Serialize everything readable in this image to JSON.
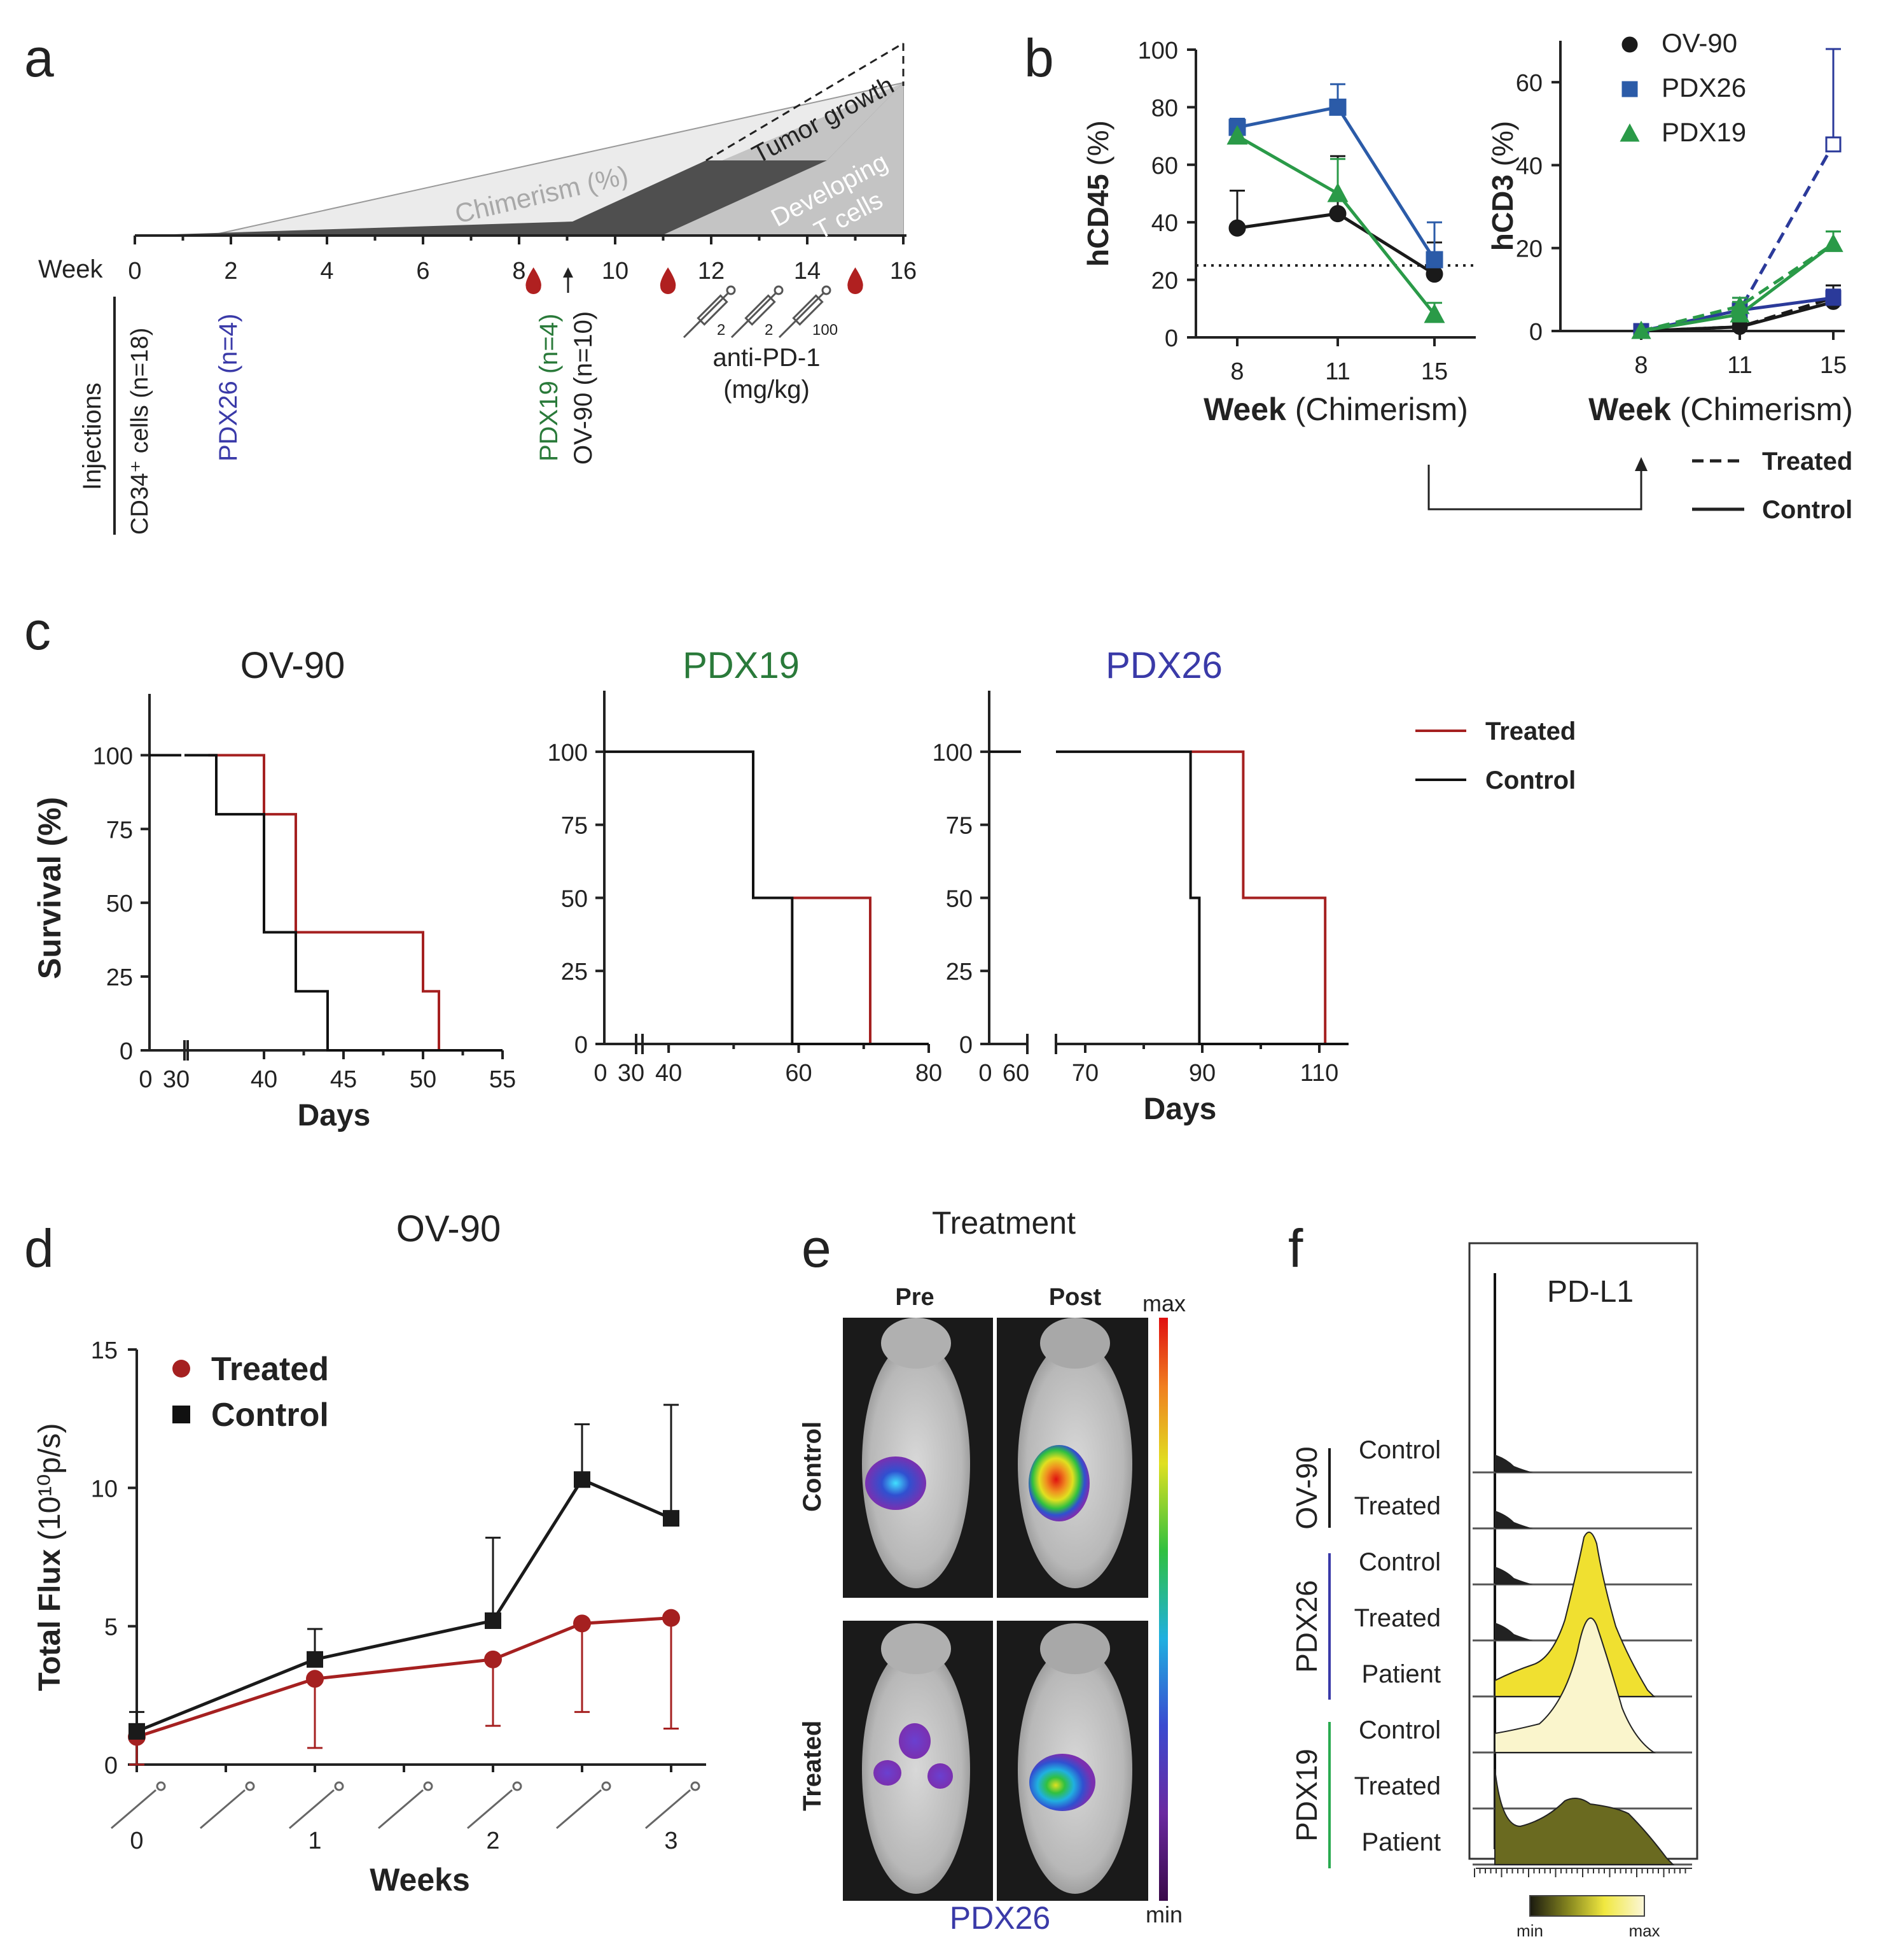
{
  "panel_letters": {
    "a": "a",
    "b": "b",
    "c": "c",
    "d": "d",
    "e": "e",
    "f": "f"
  },
  "colors": {
    "ov90": "#1a1a1a",
    "pdx26": "#2b5ba8",
    "pdx19": "#2a9a48",
    "pdx26_title": "#3a3aa8",
    "pdx19_title": "#2a7a3a",
    "treated": "#a52020",
    "control": "#111111"
  },
  "panel_a": {
    "week_label": "Week",
    "weeks": [
      0,
      2,
      4,
      6,
      8,
      10,
      12,
      14,
      16
    ],
    "regions": {
      "chimerism": "Chimerism (%)",
      "tumor_growth": "Tumor growth",
      "developing_l1": "Developing",
      "developing_l2": "T cells"
    },
    "injections_label": "Injections",
    "cd34": "CD34⁺ cells (n=18)",
    "pdx26": "PDX26 (n=4)",
    "pdx19": "PDX19 (n=4)",
    "ov90": "OV-90 (n=10)",
    "blood_draw_weeks": [
      8.3,
      11.1,
      15
    ],
    "doses": [
      "2",
      "2",
      "100"
    ],
    "antipd1_l1": "anti-PD-1",
    "antipd1_l2": "(mg/kg)"
  },
  "chart_data": [
    {
      "panel": "b-left",
      "type": "line",
      "ylabel": "hCD45 (%)",
      "xlabel_bold": "Week",
      "xlabel_rest": "(Chimerism)",
      "categories": [
        8,
        11,
        15
      ],
      "ylim": [
        0,
        100
      ],
      "yticks": [
        0,
        20,
        40,
        60,
        80,
        100
      ],
      "threshold": 25,
      "series": [
        {
          "name": "OV-90",
          "values": [
            38,
            43,
            22
          ],
          "err": [
            13,
            20,
            11
          ],
          "marker": "circle",
          "color": "#1a1a1a"
        },
        {
          "name": "PDX26",
          "values": [
            73,
            80,
            27
          ],
          "err": [
            3,
            8,
            13
          ],
          "marker": "square",
          "color": "#2b5ba8"
        },
        {
          "name": "PDX19",
          "values": [
            70,
            50,
            8
          ],
          "err": [
            0,
            12,
            4
          ],
          "marker": "triangle",
          "color": "#2a9a48"
        }
      ]
    },
    {
      "panel": "b-right",
      "type": "line",
      "ylabel": "hCD3 (%)",
      "xlabel_bold": "Week",
      "xlabel_rest": "(Chimerism)",
      "categories": [
        8,
        11,
        15
      ],
      "ylim": [
        0,
        70
      ],
      "yticks": [
        0,
        20,
        40,
        60
      ],
      "legend": [
        "OV-90",
        "PDX26",
        "PDX19"
      ],
      "style_legend": {
        "treated": "Treated",
        "control": "Control"
      },
      "series": [
        {
          "name": "OV-90",
          "group": "Control",
          "values": [
            0,
            1,
            7
          ],
          "err": [
            0,
            1,
            4
          ],
          "color": "#1a1a1a"
        },
        {
          "name": "OV-90",
          "group": "Treated",
          "values": [
            0,
            1,
            8
          ],
          "err": [
            0,
            1,
            3
          ],
          "color": "#1a1a1a"
        },
        {
          "name": "PDX26",
          "group": "Control",
          "values": [
            0,
            5,
            8
          ],
          "err": [
            0,
            3,
            2
          ],
          "color": "#2b3a9a"
        },
        {
          "name": "PDX26",
          "group": "Treated",
          "values": [
            0,
            5,
            45
          ],
          "err": [
            0,
            2,
            23
          ],
          "color": "#2b3a9a"
        },
        {
          "name": "PDX19",
          "group": "Control",
          "values": [
            0,
            4,
            21
          ],
          "err": [
            0,
            3,
            3
          ],
          "color": "#2a9a48"
        },
        {
          "name": "PDX19",
          "group": "Treated",
          "values": [
            0,
            6,
            21
          ],
          "err": [
            0,
            2,
            3
          ],
          "color": "#2a9a48"
        }
      ]
    },
    {
      "panel": "c-1",
      "type": "line",
      "title": "OV-90",
      "ylabel": "Survival (%)",
      "xlabel": "Days",
      "xticks_break": [
        "0",
        "30"
      ],
      "xticks": [
        40,
        45,
        50,
        55
      ],
      "xlim": [
        35,
        55
      ],
      "yticks": [
        0,
        25,
        50,
        75,
        100
      ],
      "series": [
        {
          "name": "Treated",
          "steps": [
            [
              36.5,
              100
            ],
            [
              40,
              100
            ],
            [
              40,
              80
            ],
            [
              42,
              80
            ],
            [
              42,
              40
            ],
            [
              50,
              40
            ],
            [
              50,
              20
            ],
            [
              51,
              20
            ],
            [
              51,
              0
            ]
          ]
        },
        {
          "name": "Control",
          "steps": [
            [
              35,
              100
            ],
            [
              37,
              100
            ],
            [
              37,
              80
            ],
            [
              40,
              80
            ],
            [
              40,
              40
            ],
            [
              42,
              40
            ],
            [
              42,
              20
            ],
            [
              44,
              20
            ],
            [
              44,
              0
            ],
            [
              55,
              0
            ]
          ]
        }
      ]
    },
    {
      "panel": "c-2",
      "type": "line",
      "title": "PDX19",
      "ylabel": "",
      "xlabel": "",
      "xticks_break": [
        "0",
        "30"
      ],
      "xticks": [
        40,
        60,
        80
      ],
      "xlim": [
        35,
        80
      ],
      "yticks": [
        0,
        25,
        50,
        75,
        100
      ],
      "series": [
        {
          "name": "Treated",
          "steps": [
            [
              53,
              50
            ],
            [
              71,
              50
            ],
            [
              71,
              0
            ]
          ]
        },
        {
          "name": "Control",
          "steps": [
            [
              35,
              100
            ],
            [
              53,
              100
            ],
            [
              53,
              50
            ],
            [
              59,
              50
            ],
            [
              59,
              0
            ],
            [
              80,
              0
            ]
          ]
        }
      ]
    },
    {
      "panel": "c-3",
      "type": "line",
      "title": "PDX26",
      "ylabel": "",
      "xlabel": "Days",
      "xticks_break": [
        "0",
        "60"
      ],
      "xticks": [
        70,
        90,
        110
      ],
      "xlim": [
        65,
        115
      ],
      "yticks": [
        0,
        25,
        50,
        75,
        100
      ],
      "legend": {
        "treated": "Treated",
        "control": "Control"
      },
      "series": [
        {
          "name": "Treated",
          "steps": [
            [
              88,
              100
            ],
            [
              97,
              100
            ],
            [
              97,
              50
            ],
            [
              111,
              50
            ],
            [
              111,
              0
            ]
          ]
        },
        {
          "name": "Control",
          "steps": [
            [
              65,
              100
            ],
            [
              88,
              100
            ],
            [
              88,
              50
            ],
            [
              89.5,
              50
            ],
            [
              89.5,
              0
            ],
            [
              115,
              0
            ]
          ]
        }
      ]
    },
    {
      "panel": "d",
      "type": "line",
      "title": "OV-90",
      "ylabel_main": "Total Flux",
      "ylabel_unit": "(10¹⁰p/s)",
      "xlabel": "Weeks",
      "xticks": [
        "0",
        "1",
        "2",
        "3"
      ],
      "ylim": [
        0,
        15
      ],
      "yticks": [
        0,
        5,
        10,
        15
      ],
      "x": [
        0,
        1,
        2,
        2.5,
        3
      ],
      "series": [
        {
          "name": "Treated",
          "values": [
            1.0,
            3.1,
            3.8,
            5.1,
            5.3
          ],
          "err_down": [
            1.0,
            2.5,
            2.4,
            3.2,
            4.0
          ],
          "color": "#a52020"
        },
        {
          "name": "Control",
          "values": [
            1.2,
            3.8,
            5.2,
            10.3,
            8.9
          ],
          "err_up": [
            0.7,
            1.1,
            3.0,
            2.0,
            4.1
          ],
          "color": "#1a1a1a"
        }
      ]
    },
    {
      "panel": "f",
      "type": "area",
      "title": "PD-L1",
      "groups": [
        {
          "label": "OV-90",
          "rows": [
            "Control",
            "Treated"
          ]
        },
        {
          "label": "PDX26",
          "rows": [
            "Control",
            "Treated",
            "Patient"
          ]
        },
        {
          "label": "PDX19",
          "rows": [
            "Control",
            "Treated",
            "Patient"
          ]
        }
      ],
      "scale": {
        "min": "min",
        "max": "max"
      }
    }
  ],
  "panel_e": {
    "title": "Treatment",
    "cols": [
      "Pre",
      "Post"
    ],
    "rows": [
      "Control",
      "Treated"
    ],
    "scale_max": "max",
    "scale_min": "min",
    "model": "PDX26"
  }
}
